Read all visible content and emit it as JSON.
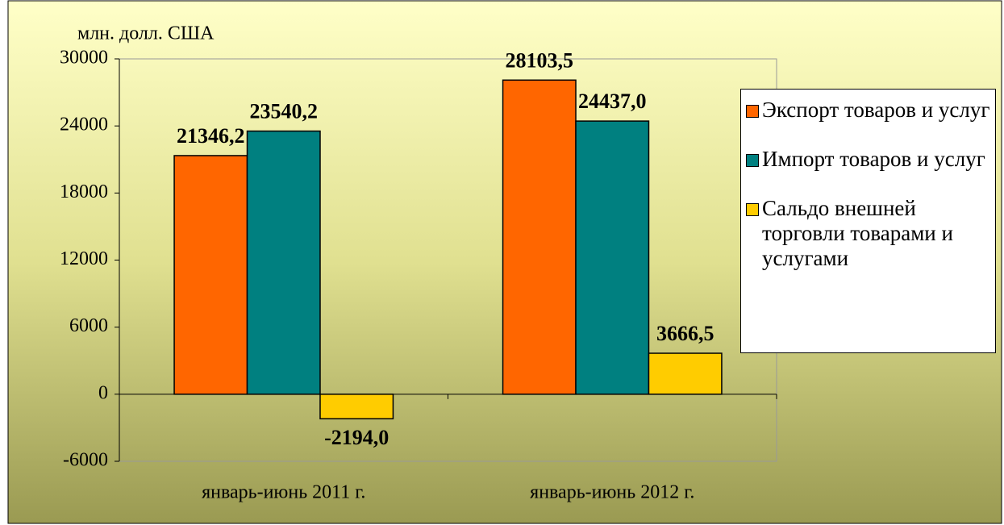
{
  "chart_data": {
    "type": "bar",
    "unit_label": "млн. долл. США",
    "categories": [
      "январь-июнь 2011 г.",
      "январь-июнь 2012 г."
    ],
    "series": [
      {
        "name": "Экспорт товаров и услуг",
        "color": "#ff6600",
        "values": [
          21346.2,
          28103.5
        ],
        "value_labels": [
          "21346,2",
          "28103,5"
        ]
      },
      {
        "name": "Импорт товаров и услуг",
        "color": "#008080",
        "values": [
          23540.2,
          24437.0
        ],
        "value_labels": [
          "23540,2",
          "24437,0"
        ]
      },
      {
        "name": "Сальдо внешней торговли товарами и услугами",
        "color": "#ffcc00",
        "values": [
          -2194.0,
          3666.5
        ],
        "value_labels": [
          "-2194,0",
          "3666,5"
        ]
      }
    ],
    "ylim": [
      -6000,
      30000
    ],
    "yticks": [
      -6000,
      0,
      6000,
      12000,
      18000,
      24000,
      30000
    ],
    "grid": false,
    "legend": "right"
  }
}
